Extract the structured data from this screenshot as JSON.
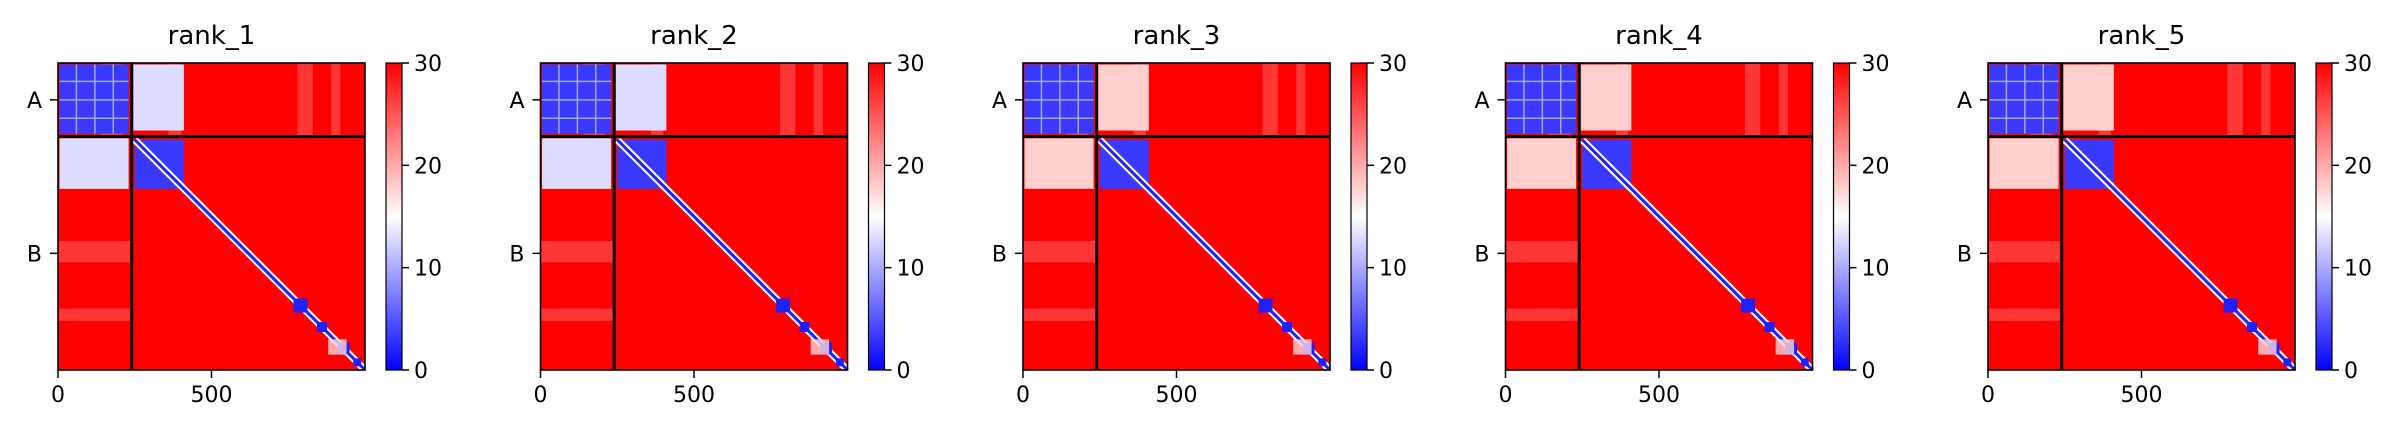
{
  "chart_data": {
    "type": "heatmap",
    "colormap": {
      "low": "#0000ff",
      "mid": "#ffffff",
      "high": "#ff0000"
    },
    "colorbar": {
      "range": [
        0,
        30
      ],
      "ticks": [
        "0",
        "10",
        "20",
        "30"
      ]
    },
    "x_range": [
      0,
      1000
    ],
    "x_ticks": [
      {
        "value": 0,
        "label": "0"
      },
      {
        "value": 500,
        "label": "500"
      }
    ],
    "chain_boundary": 240,
    "chains": [
      {
        "label": "A",
        "center": 120
      },
      {
        "label": "B",
        "center": 620
      }
    ],
    "panels": [
      {
        "title": "rank_1"
      },
      {
        "title": "rank_2"
      },
      {
        "title": "rank_3"
      },
      {
        "title": "rank_4"
      },
      {
        "title": "rank_5"
      }
    ]
  }
}
